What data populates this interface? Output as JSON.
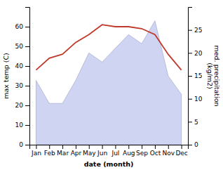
{
  "chart_data": {
    "type": "line",
    "xlabel": "date (month)",
    "ylabel": "max temp (C)",
    "y2label": "med. precipitation\n(kg/m2)",
    "categories": [
      "Jan",
      "Feb",
      "Mar",
      "Apr",
      "May",
      "Jun",
      "Jul",
      "Aug",
      "Sep",
      "Oct",
      "Nov",
      "Dec"
    ],
    "series": [
      {
        "type": "line",
        "color": "#c0392b",
        "values": [
          38,
          44,
          46,
          52,
          56,
          61,
          60,
          60,
          59,
          56,
          46,
          38
        ]
      },
      {
        "type": "area",
        "axis": "y2",
        "color": "#c5cdf0",
        "values": [
          14,
          9,
          9,
          14,
          20,
          18,
          21,
          24,
          22,
          27,
          15,
          11
        ]
      }
    ],
    "ylim": [
      0,
      70
    ],
    "yticks": [
      0,
      10,
      20,
      30,
      40,
      50,
      60
    ],
    "y2lim": [
      0,
      30
    ],
    "y2ticks": [
      0,
      5,
      10,
      15,
      20,
      25
    ]
  }
}
